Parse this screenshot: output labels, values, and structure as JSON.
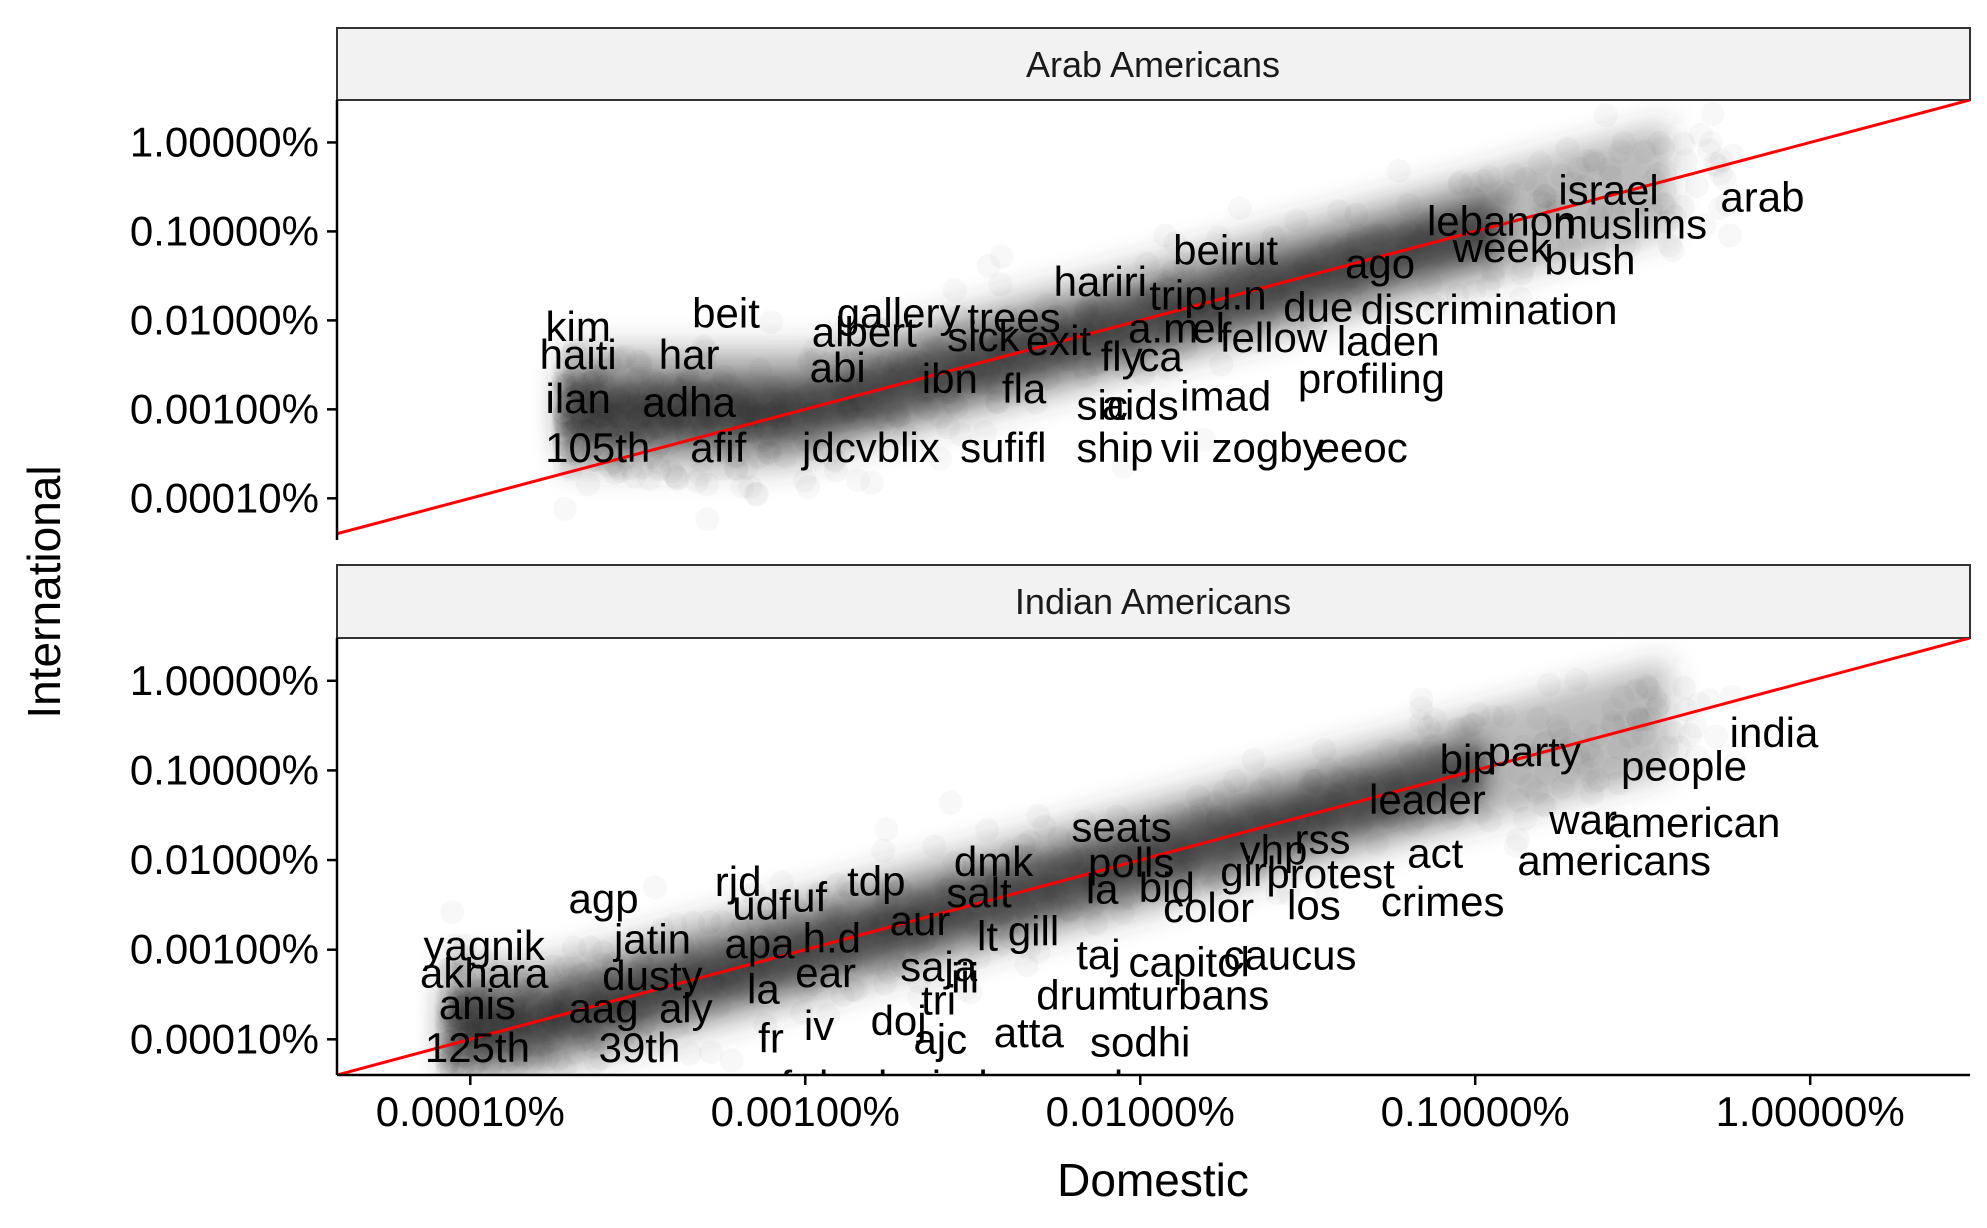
{
  "chart_data": {
    "type": "scatter",
    "xlabel": "Domestic",
    "ylabel": "International",
    "scale": "log10",
    "xlim": [
      4e-07,
      0.03
    ],
    "x_ticks": [
      {
        "value": 1e-06,
        "label": "0.00010%"
      },
      {
        "value": 1e-05,
        "label": "0.00100%"
      },
      {
        "value": 0.0001,
        "label": "0.01000%"
      },
      {
        "value": 0.001,
        "label": "0.10000%"
      },
      {
        "value": 0.01,
        "label": "1.00000%"
      }
    ],
    "y_ticks": [
      {
        "value": 1e-06,
        "label": "0.00010%"
      },
      {
        "value": 1e-05,
        "label": "0.00100%"
      },
      {
        "value": 0.0001,
        "label": "0.01000%"
      },
      {
        "value": 0.001,
        "label": "0.10000%"
      },
      {
        "value": 0.01,
        "label": "1.00000%"
      }
    ],
    "reference_line": {
      "type": "y=x",
      "color": "#ff0000"
    },
    "point_color": "#1a1a1a",
    "grid": false,
    "panels": [
      {
        "title": "Arab Americans",
        "ylim": [
          3.4e-07,
          0.03
        ],
        "labels": [
          {
            "text": "arab",
            "x": 0.0072,
            "y": 0.0024
          },
          {
            "text": "israel",
            "x": 0.0025,
            "y": 0.0029
          },
          {
            "text": "muslims",
            "x": 0.0029,
            "y": 0.0012
          },
          {
            "text": "lebanon",
            "x": 0.0012,
            "y": 0.0013
          },
          {
            "text": "week",
            "x": 0.0012,
            "y": 0.00065
          },
          {
            "text": "bush",
            "x": 0.0022,
            "y": 0.00047
          },
          {
            "text": "ago",
            "x": 0.00052,
            "y": 0.00043
          },
          {
            "text": "beirut",
            "x": 0.00018,
            "y": 0.00061
          },
          {
            "text": "hariri",
            "x": 7.6e-05,
            "y": 0.00027
          },
          {
            "text": "trip",
            "x": 0.00013,
            "y": 0.00019
          },
          {
            "text": "u.n",
            "x": 0.000195,
            "y": 0.00019
          },
          {
            "text": "due",
            "x": 0.00034,
            "y": 0.00014
          },
          {
            "text": "discrimination",
            "x": 0.0011,
            "y": 0.00013
          },
          {
            "text": "fellow",
            "x": 0.00025,
            "y": 6.3e-05
          },
          {
            "text": "laden",
            "x": 0.00055,
            "y": 5.8e-05
          },
          {
            "text": "el",
            "x": 0.00016,
            "y": 8.1e-05
          },
          {
            "text": "a.m",
            "x": 0.000117,
            "y": 8.1e-05
          },
          {
            "text": "profiling",
            "x": 0.00049,
            "y": 2.2e-05
          },
          {
            "text": "imad",
            "x": 0.00018,
            "y": 1.4e-05
          },
          {
            "text": "fly",
            "x": 8.8e-05,
            "y": 3.9e-05
          },
          {
            "text": "ca",
            "x": 0.000115,
            "y": 3.9e-05
          },
          {
            "text": "aids",
            "x": 0.0001,
            "y": 1.1e-05
          },
          {
            "text": "sic",
            "x": 7.7e-05,
            "y": 1.1e-05
          },
          {
            "text": "exit",
            "x": 5.7e-05,
            "y": 5.9e-05
          },
          {
            "text": "trees",
            "x": 4.2e-05,
            "y": 0.000106
          },
          {
            "text": "sick",
            "x": 3.4e-05,
            "y": 6.5e-05
          },
          {
            "text": "ibn",
            "x": 2.7e-05,
            "y": 2.2e-05
          },
          {
            "text": "fla",
            "x": 4.5e-05,
            "y": 1.7e-05
          },
          {
            "text": "gallery",
            "x": 1.9e-05,
            "y": 0.00012
          },
          {
            "text": "albert",
            "x": 1.5e-05,
            "y": 7.3e-05
          },
          {
            "text": "abi",
            "x": 1.25e-05,
            "y": 2.9e-05
          },
          {
            "text": "beit",
            "x": 5.8e-06,
            "y": 0.00012
          },
          {
            "text": "har",
            "x": 4.5e-06,
            "y": 4.1e-05
          },
          {
            "text": "adha",
            "x": 4.5e-06,
            "y": 1.2e-05
          },
          {
            "text": "kim",
            "x": 2.1e-06,
            "y": 8.4e-05
          },
          {
            "text": "haiti",
            "x": 2.1e-06,
            "y": 4.1e-05
          },
          {
            "text": "ilan",
            "x": 2.1e-06,
            "y": 1.3e-05
          },
          {
            "text": "105th",
            "x": 2.4e-06,
            "y": 3.7e-06
          },
          {
            "text": "afif",
            "x": 5.5e-06,
            "y": 3.7e-06
          },
          {
            "text": "jdcvblix",
            "x": 1.57e-05,
            "y": 3.7e-06
          },
          {
            "text": "sufifl",
            "x": 3.9e-05,
            "y": 3.7e-06
          },
          {
            "text": "ship",
            "x": 8.4e-05,
            "y": 3.7e-06
          },
          {
            "text": "vii",
            "x": 0.000132,
            "y": 3.7e-06
          },
          {
            "text": "zogby",
            "x": 0.00024,
            "y": 3.7e-06
          },
          {
            "text": "eeoc",
            "x": 0.00046,
            "y": 3.7e-06
          }
        ]
      },
      {
        "title": "Indian Americans",
        "ylim": [
          4e-07,
          0.03
        ],
        "labels": [
          {
            "text": "india",
            "x": 0.0078,
            "y": 0.0026
          },
          {
            "text": "people",
            "x": 0.0042,
            "y": 0.0011
          },
          {
            "text": "party",
            "x": 0.0015,
            "y": 0.0016
          },
          {
            "text": "bjp",
            "x": 0.00095,
            "y": 0.0013
          },
          {
            "text": "leader",
            "x": 0.00072,
            "y": 0.00047
          },
          {
            "text": "war",
            "x": 0.0021,
            "y": 0.00028
          },
          {
            "text": "american",
            "x": 0.0045,
            "y": 0.00026
          },
          {
            "text": "act",
            "x": 0.00076,
            "y": 0.000118
          },
          {
            "text": "americans",
            "x": 0.0026,
            "y": 9.8e-05
          },
          {
            "text": "crimes",
            "x": 0.0008,
            "y": 3.4e-05
          },
          {
            "text": "protest",
            "x": 0.00037,
            "y": 7e-05
          },
          {
            "text": "rss",
            "x": 0.00035,
            "y": 0.00017
          },
          {
            "text": "vhp",
            "x": 0.00025,
            "y": 0.000128
          },
          {
            "text": "girl",
            "x": 0.00021,
            "y": 7.4e-05
          },
          {
            "text": "color",
            "x": 0.00016,
            "y": 2.9e-05
          },
          {
            "text": "los",
            "x": 0.00033,
            "y": 3.1e-05
          },
          {
            "text": "seats",
            "x": 8.8e-05,
            "y": 0.00023
          },
          {
            "text": "polls",
            "x": 9.4e-05,
            "y": 9.3e-05
          },
          {
            "text": "la",
            "x": 7.7e-05,
            "y": 4.7e-05
          },
          {
            "text": "bid",
            "x": 0.00012,
            "y": 4.9e-05
          },
          {
            "text": "dmk",
            "x": 3.65e-05,
            "y": 9.5e-05
          },
          {
            "text": "salt",
            "x": 3.3e-05,
            "y": 4.3e-05
          },
          {
            "text": "caucus",
            "x": 0.00028,
            "y": 8.6e-06
          },
          {
            "text": "capitol",
            "x": 0.00014,
            "y": 7.2e-06
          },
          {
            "text": "taj",
            "x": 7.5e-05,
            "y": 8.7e-06
          },
          {
            "text": "gill",
            "x": 4.8e-05,
            "y": 1.6e-05
          },
          {
            "text": "lt",
            "x": 3.5e-05,
            "y": 1.4e-05
          },
          {
            "text": "iii",
            "x": 3e-05,
            "y": 4.8e-06
          },
          {
            "text": "drum",
            "x": 6.8e-05,
            "y": 3.1e-06
          },
          {
            "text": "turbans",
            "x": 0.00015,
            "y": 3.1e-06
          },
          {
            "text": "tri",
            "x": 2.5e-05,
            "y": 2.7e-06
          },
          {
            "text": "atta",
            "x": 4.65e-05,
            "y": 1.17e-06
          },
          {
            "text": "sodhi",
            "x": 0.0001,
            "y": 9.2e-07
          },
          {
            "text": "ajc",
            "x": 2.53e-05,
            "y": 9.9e-07
          },
          {
            "text": "doj",
            "x": 1.9e-05,
            "y": 1.6e-06
          },
          {
            "text": "iv",
            "x": 1.1e-05,
            "y": 1.4e-06
          },
          {
            "text": "fr",
            "x": 7.9e-06,
            "y": 1.02e-06
          },
          {
            "text": "saja",
            "x": 2.5e-05,
            "y": 6.4e-06
          },
          {
            "text": "ear",
            "x": 1.15e-05,
            "y": 5.5e-06
          },
          {
            "text": "aur",
            "x": 2.2e-05,
            "y": 2.1e-05
          },
          {
            "text": "h.d",
            "x": 1.2e-05,
            "y": 1.34e-05
          },
          {
            "text": "la",
            "x": 7.5e-06,
            "y": 3.6e-06
          },
          {
            "text": "apa",
            "x": 7.3e-06,
            "y": 1.15e-05
          },
          {
            "text": "uf",
            "x": 1.03e-05,
            "y": 3.8e-05
          },
          {
            "text": "tdp",
            "x": 1.63e-05,
            "y": 5.8e-05
          },
          {
            "text": "udf",
            "x": 7.4e-06,
            "y": 3.1e-05
          },
          {
            "text": "rjd",
            "x": 6.3e-06,
            "y": 5.7e-05
          },
          {
            "text": "agp",
            "x": 2.5e-06,
            "y": 3.7e-05
          },
          {
            "text": "jatin",
            "x": 3.5e-06,
            "y": 1.3e-05
          },
          {
            "text": "dusty",
            "x": 3.5e-06,
            "y": 5.1e-06
          },
          {
            "text": "aly",
            "x": 4.4e-06,
            "y": 2.2e-06
          },
          {
            "text": "aag",
            "x": 2.5e-06,
            "y": 2.2e-06
          },
          {
            "text": "yagnik",
            "x": 1.1e-06,
            "y": 1.1e-05
          },
          {
            "text": "akhara",
            "x": 1.1e-06,
            "y": 5.4e-06
          },
          {
            "text": "anis",
            "x": 1.05e-06,
            "y": 2.4e-06
          },
          {
            "text": "125th",
            "x": 1.05e-06,
            "y": 8e-07
          },
          {
            "text": "39th",
            "x": 3.2e-06,
            "y": 8e-07
          },
          {
            "text": "nufe",
            "x": 8.1e-06,
            "y": 3e-07
          },
          {
            "text": "bs",
            "x": 1.28e-05,
            "y": 3e-07
          },
          {
            "text": "laziodnc",
            "x": 2.8e-05,
            "y": 3e-07
          },
          {
            "text": "aclu",
            "x": 8.02e-05,
            "y": 3e-07
          }
        ]
      }
    ]
  }
}
